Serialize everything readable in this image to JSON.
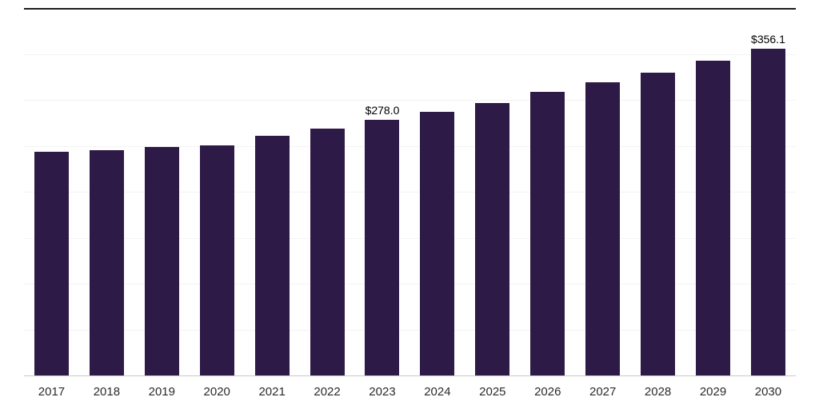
{
  "chart_data": {
    "type": "bar",
    "title": "",
    "xlabel": "",
    "ylabel": "",
    "categories": [
      "2017",
      "2018",
      "2019",
      "2020",
      "2021",
      "2022",
      "2023",
      "2024",
      "2025",
      "2026",
      "2027",
      "2028",
      "2029",
      "2030"
    ],
    "values": [
      243.1,
      245.6,
      249.0,
      250.8,
      261.0,
      268.6,
      278.0,
      287.3,
      296.7,
      308.6,
      318.8,
      329.8,
      342.6,
      356.1
    ],
    "data_labels": [
      "",
      "",
      "",
      "",
      "",
      "",
      "$278.0",
      "",
      "",
      "",
      "",
      "",
      "",
      "$356.1"
    ],
    "ylim": [
      0,
      400
    ],
    "gridline_step": 50,
    "grid": "on",
    "legend": "none",
    "bar_color": "#2e1a47",
    "axis_line_color": "#c9c9c9",
    "top_rule_color": "#1c1c1c",
    "gridline_color": "#f3f3f3",
    "label_color": "#2b2b2b"
  }
}
